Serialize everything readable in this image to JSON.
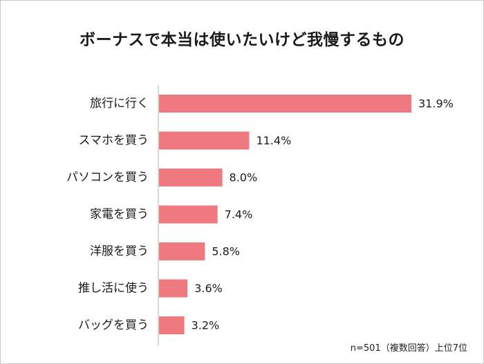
{
  "chart_data": {
    "type": "bar",
    "orientation": "horizontal",
    "title": "ボーナスで本当は使いたいけど我慢するもの",
    "categories": [
      "旅行に行く",
      "スマホを買う",
      "パソコンを買う",
      "家電を買う",
      "洋服を買う",
      "推し活に使う",
      "バッグを買う"
    ],
    "values": [
      31.9,
      11.4,
      8.0,
      7.4,
      5.8,
      3.6,
      3.2
    ],
    "value_labels": [
      "31.9%",
      "11.4%",
      "8.0%",
      "7.4%",
      "5.8%",
      "3.6%",
      "3.2%"
    ],
    "xlim": [
      0,
      31.9
    ],
    "grid": false,
    "bar_color": "#ee7a80",
    "footnote": "n=501（複数回答）上位7位"
  }
}
